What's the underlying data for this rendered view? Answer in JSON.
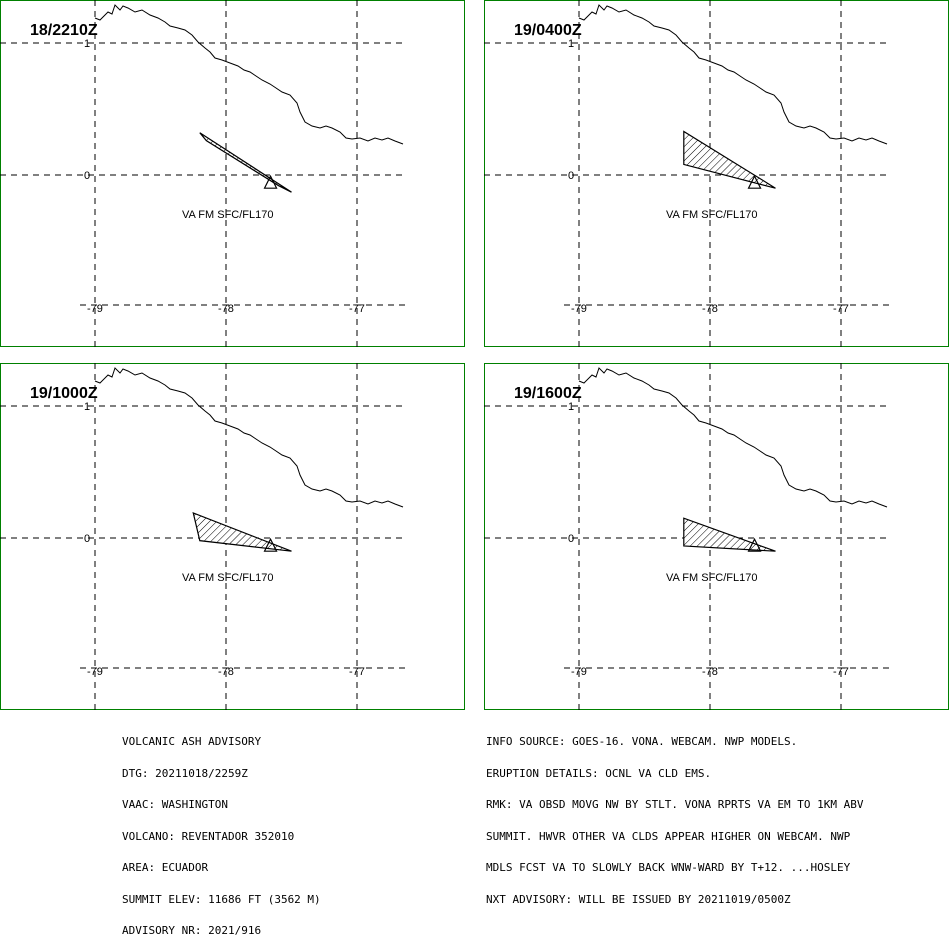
{
  "panels": [
    {
      "time": "18/2210Z",
      "label": "VA FM SFC/FL170",
      "shape": [
        [
          -78.2,
          0.32
        ],
        [
          -78.15,
          0.26
        ],
        [
          -77.6,
          -0.08
        ],
        [
          -77.5,
          -0.13
        ]
      ]
    },
    {
      "time": "19/0400Z",
      "label": "VA FM SFC/FL170",
      "shape": [
        [
          -78.2,
          0.33
        ],
        [
          -78.2,
          0.08
        ],
        [
          -77.5,
          -0.1
        ]
      ]
    },
    {
      "time": "19/1000Z",
      "label": "VA FM SFC/FL170",
      "shape": [
        [
          -78.25,
          0.19
        ],
        [
          -78.2,
          -0.02
        ],
        [
          -77.5,
          -0.1
        ]
      ]
    },
    {
      "time": "19/1600Z",
      "label": "VA FM SFC/FL170",
      "shape": [
        [
          -78.2,
          0.15
        ],
        [
          -78.2,
          -0.06
        ],
        [
          -77.5,
          -0.1
        ]
      ]
    }
  ],
  "axes": {
    "x_ticks": [
      "-79",
      "-78",
      "-77"
    ],
    "y_ticks": [
      "1",
      "0"
    ]
  },
  "volcano": {
    "lon": -77.66,
    "lat": -0.077
  },
  "advisory_left": [
    "VOLCANIC ASH ADVISORY",
    "DTG: 20211018/2259Z",
    "VAAC: WASHINGTON",
    "VOLCANO: REVENTADOR 352010",
    "AREA: ECUADOR",
    "SUMMIT ELEV: 11686 FT (3562 M)",
    "ADVISORY NR: 2021/916"
  ],
  "advisory_right": [
    "INFO SOURCE: GOES-16. VONA. WEBCAM. NWP MODELS.",
    "ERUPTION DETAILS: OCNL VA CLD EMS.",
    "RMK: VA OBSD MOVG NW BY STLT. VONA RPRTS VA EM TO 1KM ABV",
    "SUMMIT. HWVR OTHER VA CLDS APPEAR HIGHER ON WEBCAM. NWP",
    "MDLS FCST VA TO SLOWLY BACK WNW-WARD BY T+12. ...HOSLEY",
    "NXT ADVISORY: WILL BE ISSUED BY 20211019/0500Z"
  ]
}
